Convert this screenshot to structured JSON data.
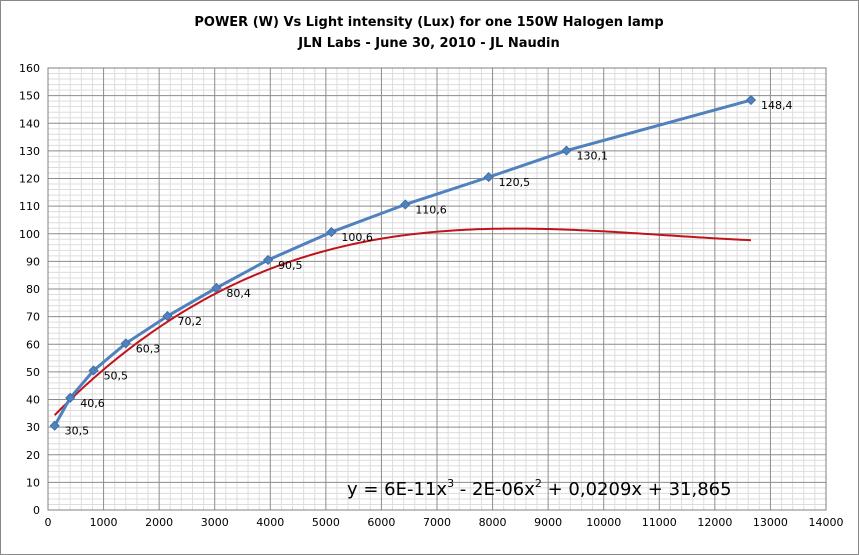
{
  "chart_data": {
    "type": "scatter",
    "title": "POWER (W) Vs Light intensity (Lux) for one 150W Halogen lamp",
    "subtitle": "JLN Labs - June 30, 2010 - JL Naudin",
    "xlabel": "",
    "ylabel": "",
    "xlim": [
      0,
      14000
    ],
    "ylim": [
      0,
      160
    ],
    "x_ticks": [
      "0",
      "1000",
      "2000",
      "3000",
      "4000",
      "5000",
      "6000",
      "7000",
      "8000",
      "9000",
      "10000",
      "11000",
      "12000",
      "13000",
      "14000"
    ],
    "y_ticks": [
      "0",
      "10",
      "20",
      "30",
      "40",
      "50",
      "60",
      "70",
      "80",
      "90",
      "100",
      "110",
      "120",
      "130",
      "140",
      "150",
      "160"
    ],
    "grid": true,
    "legend": "none",
    "series": [
      {
        "color": "#4f81bd",
        "marker": "diamond",
        "points": [
          {
            "x": 120,
            "y": 30.5,
            "label": "30,5"
          },
          {
            "x": 400,
            "y": 40.6,
            "label": "40,6"
          },
          {
            "x": 820,
            "y": 50.5,
            "label": "50,5"
          },
          {
            "x": 1400,
            "y": 60.3,
            "label": "60,3"
          },
          {
            "x": 2150,
            "y": 70.2,
            "label": "70,2"
          },
          {
            "x": 3030,
            "y": 80.4,
            "label": "80,4"
          },
          {
            "x": 3960,
            "y": 90.5,
            "label": "90,5"
          },
          {
            "x": 5100,
            "y": 100.6,
            "label": "100,6"
          },
          {
            "x": 6430,
            "y": 110.6,
            "label": "110,6"
          },
          {
            "x": 7930,
            "y": 120.5,
            "label": "120,5"
          },
          {
            "x": 9330,
            "y": 130.1,
            "label": "130,1"
          },
          {
            "x": 12650,
            "y": 148.4,
            "label": "148,4"
          }
        ]
      }
    ],
    "trendline": {
      "type": "polynomial",
      "order": 3,
      "color": "#c0141c",
      "coefficients": {
        "a3": 6e-11,
        "a2": -2e-06,
        "a1": 0.0209,
        "a0": 31.865
      },
      "equation_parts": {
        "lead": "y = 6E-11x",
        "exp1": "3",
        "mid": " - 2E-06x",
        "exp2": "2",
        "tail": " + 0,0209x + 31,865"
      }
    }
  }
}
